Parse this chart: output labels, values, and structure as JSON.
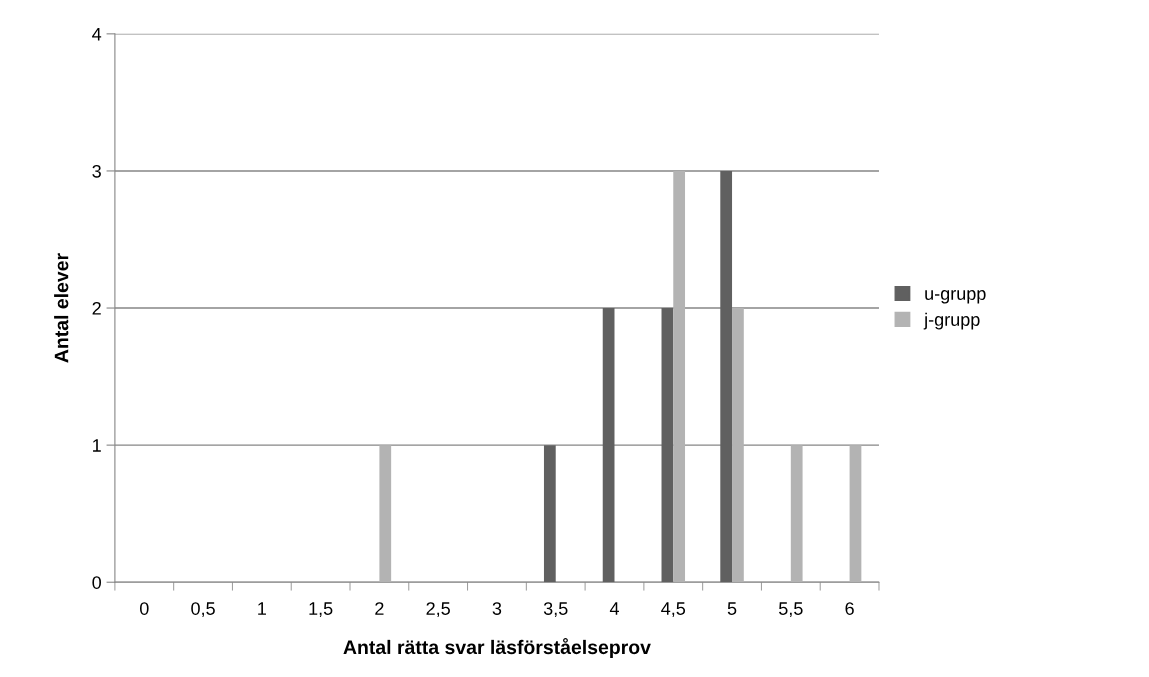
{
  "chart_data": {
    "type": "bar",
    "xlabel": "Antal rätta svar läsförståelseprov",
    "ylabel": "Antal elever",
    "categories": [
      "0",
      "0,5",
      "1",
      "1,5",
      "2",
      "2,5",
      "3",
      "3,5",
      "4",
      "4,5",
      "5",
      "5,5",
      "6"
    ],
    "series": [
      {
        "name": "u-grupp",
        "color": "#606060",
        "values": [
          0,
          0,
          0,
          0,
          0,
          0,
          0,
          1,
          2,
          2,
          3,
          0,
          0
        ]
      },
      {
        "name": "j-grupp",
        "color": "#b3b3b3",
        "values": [
          0,
          0,
          0,
          0,
          1,
          0,
          0,
          0,
          0,
          3,
          2,
          1,
          1
        ]
      }
    ],
    "ylim": [
      0,
      4
    ],
    "yticks": [
      0,
      1,
      2,
      3,
      4
    ],
    "grid": "y",
    "legend": "right"
  }
}
